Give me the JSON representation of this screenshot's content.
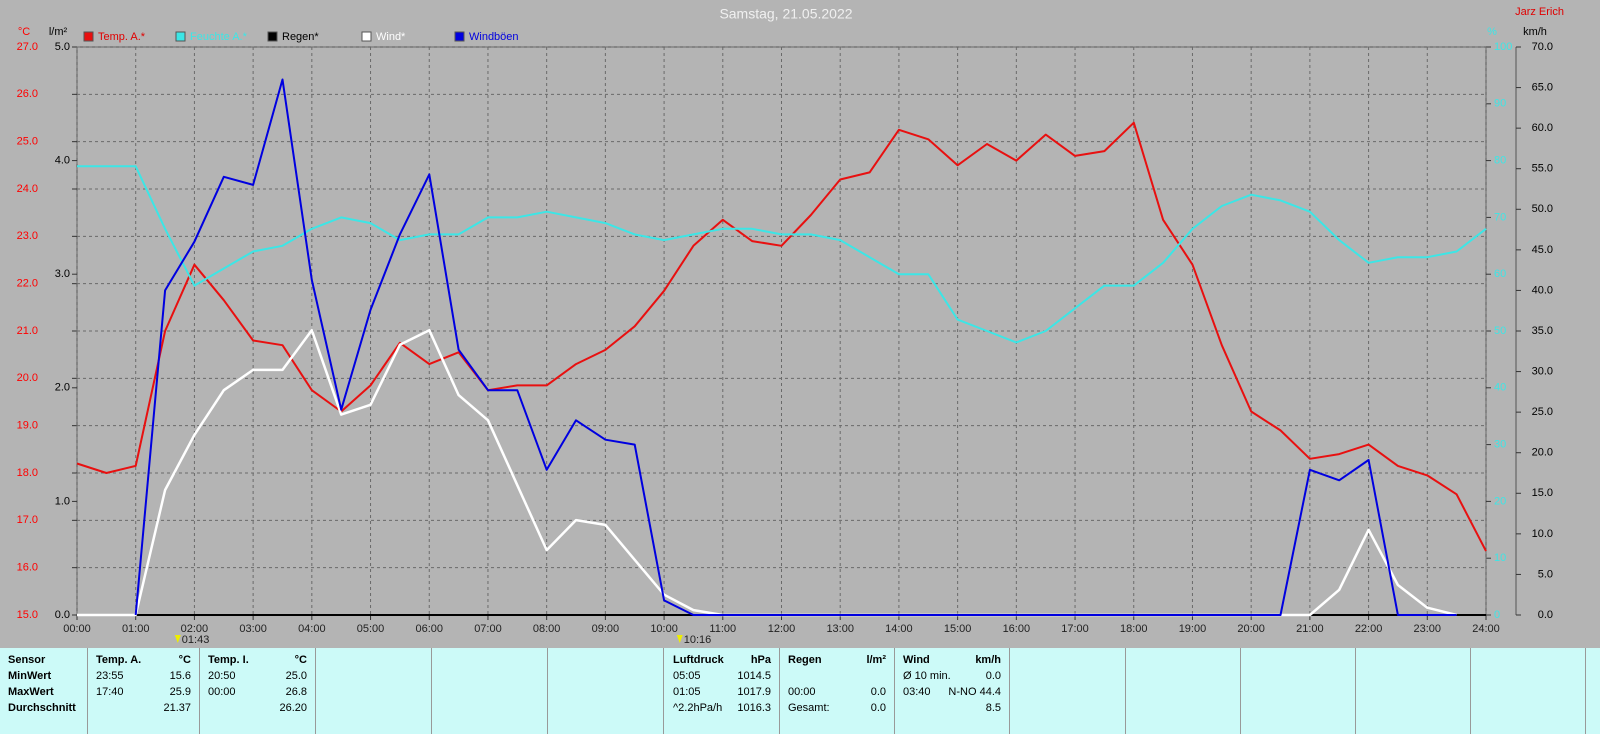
{
  "chart_data": {
    "type": "line",
    "title": "Samstag, 21.05.2022",
    "author": "Jarz Erich",
    "annotations": [
      "01:43",
      "10:16"
    ],
    "x": [
      0,
      0.5,
      1,
      1.5,
      2,
      2.5,
      3,
      3.5,
      4,
      4.5,
      5,
      5.5,
      6,
      6.5,
      7,
      7.5,
      8,
      8.5,
      9,
      9.5,
      10,
      10.5,
      11,
      11.5,
      12,
      12.5,
      13,
      13.5,
      14,
      14.5,
      15,
      15.5,
      16,
      16.5,
      17,
      17.5,
      18,
      18.5,
      19,
      19.5,
      20,
      20.5,
      21,
      21.5,
      22,
      22.5,
      23,
      23.5,
      24
    ],
    "xlim": [
      0,
      24
    ],
    "xticks": [
      {
        "value": 0,
        "label": "00:00"
      },
      {
        "value": 1,
        "label": "01:00"
      },
      {
        "value": 2,
        "label": "02:00"
      },
      {
        "value": 3,
        "label": "03:00"
      },
      {
        "value": 4,
        "label": "04:00"
      },
      {
        "value": 5,
        "label": "05:00"
      },
      {
        "value": 6,
        "label": "06:00"
      },
      {
        "value": 7,
        "label": "07:00"
      },
      {
        "value": 8,
        "label": "08:00"
      },
      {
        "value": 9,
        "label": "09:00"
      },
      {
        "value": 10,
        "label": "10:00"
      },
      {
        "value": 11,
        "label": "11:00"
      },
      {
        "value": 12,
        "label": "12:00"
      },
      {
        "value": 13,
        "label": "13:00"
      },
      {
        "value": 14,
        "label": "14:00"
      },
      {
        "value": 15,
        "label": "15:00"
      },
      {
        "value": 16,
        "label": "16:00"
      },
      {
        "value": 17,
        "label": "17:00"
      },
      {
        "value": 18,
        "label": "18:00"
      },
      {
        "value": 19,
        "label": "19:00"
      },
      {
        "value": 20,
        "label": "20:00"
      },
      {
        "value": 21,
        "label": "21:00"
      },
      {
        "value": 22,
        "label": "22:00"
      },
      {
        "value": 23,
        "label": "23:00"
      },
      {
        "value": 24,
        "label": "24:00"
      }
    ],
    "grid": true,
    "axes": {
      "temp": {
        "label": "°C",
        "color": "#ff0000",
        "lim": [
          15,
          27
        ],
        "ticks": [
          {
            "value": 15,
            "label": "15.0"
          },
          {
            "value": 16,
            "label": "16.0"
          },
          {
            "value": 17,
            "label": "17.0"
          },
          {
            "value": 18,
            "label": "18.0"
          },
          {
            "value": 19,
            "label": "19.0"
          },
          {
            "value": 20,
            "label": "20.0"
          },
          {
            "value": 21,
            "label": "21.0"
          },
          {
            "value": 22,
            "label": "22.0"
          },
          {
            "value": 23,
            "label": "23.0"
          },
          {
            "value": 24,
            "label": "24.0"
          },
          {
            "value": 25,
            "label": "25.0"
          },
          {
            "value": 26,
            "label": "26.0"
          },
          {
            "value": 27,
            "label": "27.0"
          }
        ]
      },
      "rain": {
        "label": "l/m²",
        "color": "#000000",
        "lim": [
          0,
          5
        ],
        "ticks": [
          {
            "value": 0,
            "label": "0.0"
          },
          {
            "value": 1,
            "label": "1.0"
          },
          {
            "value": 2,
            "label": "2.0"
          },
          {
            "value": 3,
            "label": "3.0"
          },
          {
            "value": 4,
            "label": "4.0"
          },
          {
            "value": 5,
            "label": "5.0"
          }
        ]
      },
      "hum": {
        "label": "%",
        "color": "#3ce6e6",
        "lim": [
          0,
          100
        ],
        "ticks": [
          0,
          10,
          20,
          30,
          40,
          50,
          60,
          70,
          80,
          90,
          100
        ]
      },
      "wind": {
        "label": "km/h",
        "color": "#000000",
        "lim": [
          0,
          70
        ],
        "ticks": [
          {
            "value": 0,
            "label": "0.0"
          },
          {
            "value": 5,
            "label": "5.0"
          },
          {
            "value": 10,
            "label": "10.0"
          },
          {
            "value": 15,
            "label": "15.0"
          },
          {
            "value": 20,
            "label": "20.0"
          },
          {
            "value": 25,
            "label": "25.0"
          },
          {
            "value": 30,
            "label": "30.0"
          },
          {
            "value": 35,
            "label": "35.0"
          },
          {
            "value": 40,
            "label": "40.0"
          },
          {
            "value": 45,
            "label": "45.0"
          },
          {
            "value": 50,
            "label": "50.0"
          },
          {
            "value": 55,
            "label": "55.0"
          },
          {
            "value": 60,
            "label": "60.0"
          },
          {
            "value": 65,
            "label": "65.0"
          },
          {
            "value": 70,
            "label": "70.0"
          }
        ]
      }
    },
    "series": [
      {
        "name": "Temp. A.*",
        "color": "#e81010",
        "axis": "temp",
        "values": [
          18.2,
          18.0,
          18.15,
          21.0,
          22.4,
          21.65,
          20.8,
          20.7,
          19.75,
          19.3,
          19.85,
          20.75,
          20.3,
          20.55,
          19.75,
          19.85,
          19.85,
          20.3,
          20.6,
          21.1,
          21.85,
          22.8,
          23.35,
          22.9,
          22.8,
          23.45,
          24.2,
          24.35,
          25.25,
          25.05,
          24.5,
          24.95,
          24.6,
          25.15,
          24.7,
          24.8,
          25.4,
          23.35,
          22.4,
          20.7,
          19.3,
          18.9,
          18.3,
          18.4,
          18.6,
          18.15,
          17.95,
          17.55,
          16.35
        ]
      },
      {
        "name": "Feuchte A.*",
        "color": "#3ce6e6",
        "axis": "hum",
        "values": [
          79,
          79,
          79,
          68,
          58,
          61,
          64,
          65,
          68,
          70,
          69,
          66,
          67,
          67,
          70,
          70,
          71,
          70,
          69,
          67,
          66,
          67,
          68,
          68,
          67,
          67,
          66,
          63,
          60,
          60,
          52,
          50,
          48,
          50,
          54,
          58,
          58,
          62,
          68,
          72,
          74,
          73,
          71,
          66,
          62,
          63,
          63,
          64,
          68
        ]
      },
      {
        "name": "Regen*",
        "color": "#000000",
        "axis": "rain",
        "values": [
          0,
          0,
          0,
          0,
          0,
          0,
          0,
          0,
          0,
          0,
          0,
          0,
          0,
          0,
          0,
          0,
          0,
          0,
          0,
          0,
          0,
          0,
          0,
          0,
          0,
          0,
          0,
          0,
          0,
          0,
          0,
          0,
          0,
          0,
          0,
          0,
          0,
          0,
          0,
          0,
          0,
          0,
          0,
          0,
          0,
          0,
          0,
          0,
          0
        ]
      },
      {
        "name": "Wind*",
        "color": "#ffffff",
        "axis": "wind",
        "values": [
          0,
          0,
          0,
          15.4,
          22.2,
          27.7,
          30.2,
          30.2,
          35.1,
          24.7,
          25.9,
          33.3,
          35.1,
          27.1,
          24.0,
          16.0,
          8.0,
          11.7,
          11.1,
          6.8,
          2.5,
          0.6,
          0,
          0,
          0,
          0,
          0,
          0,
          0,
          0,
          0,
          0,
          0,
          0,
          0,
          0,
          0,
          0,
          0,
          0,
          0,
          0,
          0,
          3.1,
          10.5,
          3.7,
          0.9,
          0,
          null
        ]
      },
      {
        "name": "Windböen",
        "color": "#0000e0",
        "axis": "wind",
        "values": [
          null,
          null,
          0,
          40,
          46,
          54,
          53,
          66,
          41.3,
          25.3,
          37.6,
          46.9,
          54.3,
          32.7,
          27.7,
          27.7,
          17.9,
          24.0,
          21.6,
          21.0,
          1.8,
          0,
          0,
          0,
          0,
          0,
          0,
          0,
          0,
          0,
          0,
          0,
          0,
          0,
          0,
          0,
          0,
          0,
          0,
          0,
          0,
          0,
          17.9,
          16.6,
          19.1,
          0,
          0,
          0,
          null
        ]
      }
    ]
  },
  "stats": [
    {
      "header": [
        "Sensor"
      ],
      "rows": [
        [
          "MinWert"
        ],
        [
          "MaxWert"
        ],
        [
          "Durchschnitt"
        ]
      ]
    },
    {
      "header": [
        "Temp. A.",
        "°C"
      ],
      "rows": [
        [
          "23:55",
          "15.6"
        ],
        [
          "17:40",
          "25.9"
        ],
        [
          "21.37"
        ]
      ]
    },
    {
      "header": [
        "Temp. I.",
        "°C"
      ],
      "rows": [
        [
          "20:50",
          "25.0"
        ],
        [
          "00:00",
          "26.8"
        ],
        [
          "26.20"
        ]
      ]
    },
    {
      "header": [
        "Luftdruck",
        "hPa"
      ],
      "rows": [
        [
          "05:05",
          "1014.5"
        ],
        [
          "01:05",
          "1017.9"
        ],
        [
          "^2.2hPa/h",
          "1016.3"
        ]
      ]
    },
    {
      "header": [
        "Regen",
        "l/m²"
      ],
      "rows": [
        [
          "00:00",
          "0.0"
        ],
        [
          "Gesamt:",
          "0.0"
        ]
      ]
    },
    {
      "header": [
        "Wind",
        "km/h"
      ],
      "rows": [
        [
          "Ø 10 min.",
          "0.0"
        ],
        [
          "03:40",
          "N-NO 44.4"
        ],
        [
          "8.5"
        ]
      ]
    }
  ]
}
